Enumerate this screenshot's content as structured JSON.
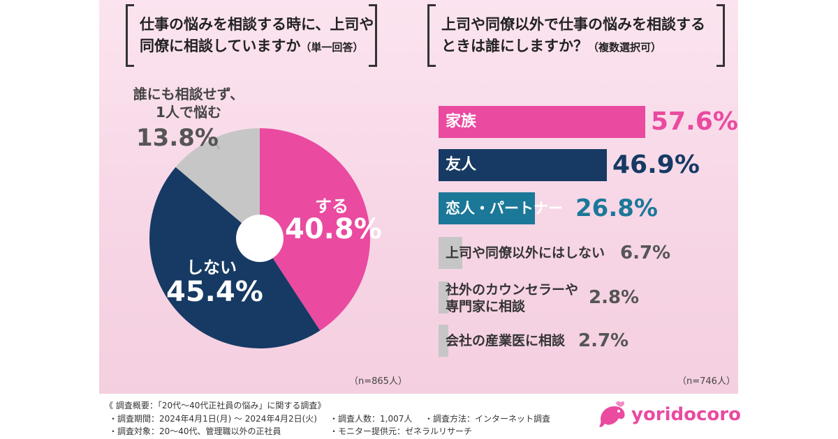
{
  "left_question": {
    "line1": "仕事の悩みを相談する時に、上司や",
    "line2": "同僚に相談していますか",
    "note": "（単一回答）"
  },
  "right_question": {
    "line1": "上司や同僚以外で仕事の悩みを相談する",
    "line2": "ときは誰にしますか？",
    "note": "（複数選択可）"
  },
  "left_n": "（n=865人）",
  "right_n": "（n=746人）",
  "footer": {
    "title": "《 調査概要：「20代〜40代正社員の悩み」に関する調査》",
    "period": "・調査期間：2024年4月1日(月) 〜 2024年4月2日(火)",
    "target": "・調査対象：20〜40代、管理職以外の正社員",
    "count": "・調査人数：1,007人",
    "method": "・調査方法：インターネット調査",
    "provider": "・モニター提供元：ゼネラルリサーチ"
  },
  "logo_text": "yoridocoro",
  "colors": {
    "pink": "#ea4aa0",
    "navy": "#163a63",
    "teal": "#1b7898",
    "gray": "#c6c6c6"
  },
  "chart_data": [
    {
      "type": "pie",
      "style": "donut",
      "slices": [
        {
          "label": "する",
          "value": 40.8,
          "display": "40.8%",
          "color": "#ea4aa0"
        },
        {
          "label": "しない",
          "value": 45.4,
          "display": "45.4%",
          "color": "#163a63"
        },
        {
          "label_line1": "誰にも相談せず、",
          "label_line2": "1人で悩む",
          "value": 13.8,
          "display": "13.8%",
          "color": "#c6c6c6"
        }
      ]
    },
    {
      "type": "bar",
      "orientation": "horizontal",
      "xlim": [
        0,
        57.6
      ],
      "categories": [
        {
          "label": "家族",
          "value": 57.6,
          "display": "57.6%",
          "color": "#ea4aa0"
        },
        {
          "label": "友人",
          "value": 46.9,
          "display": "46.9%",
          "color": "#163a63"
        },
        {
          "label": "恋人・パートナー",
          "value": 26.8,
          "display": "26.8%",
          "color": "#1b7898"
        },
        {
          "label": "上司や同僚以外にはしない",
          "value": 6.7,
          "display": "6.7%",
          "color": "#c6c6c6"
        },
        {
          "label_line1": "社外のカウンセラーや",
          "label_line2": "専門家に相談",
          "value": 2.8,
          "display": "2.8%",
          "color": "#c6c6c6"
        },
        {
          "label": "会社の産業医に相談",
          "value": 2.7,
          "display": "2.7%",
          "color": "#c6c6c6"
        }
      ]
    }
  ]
}
